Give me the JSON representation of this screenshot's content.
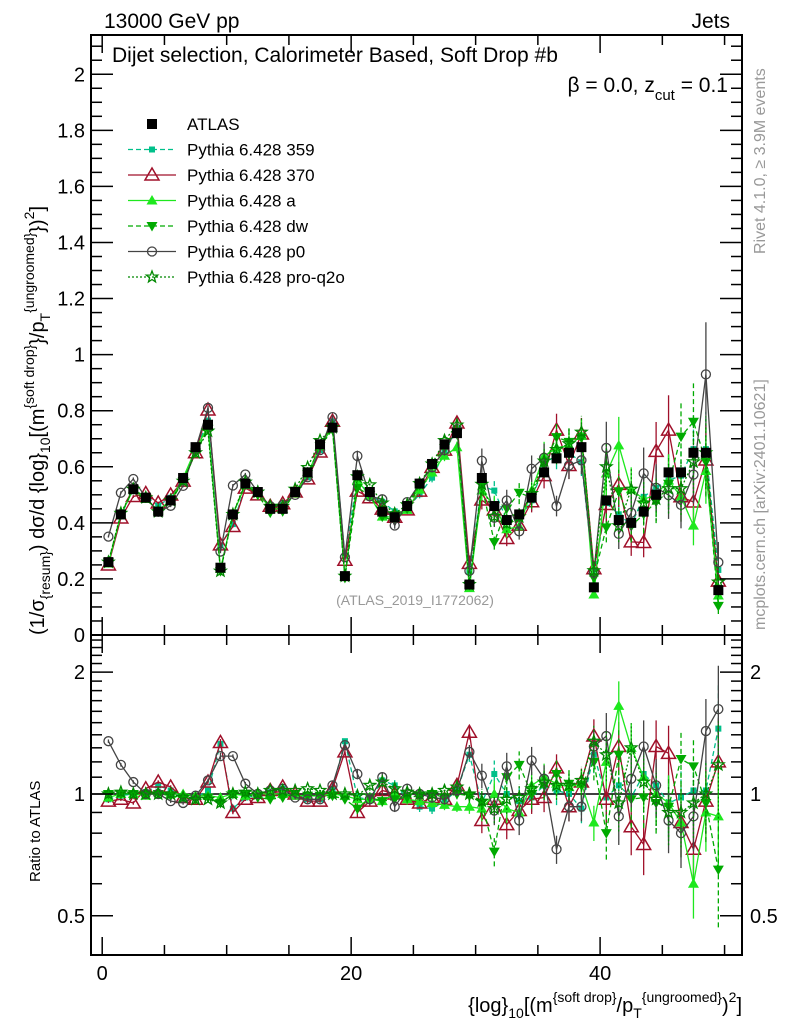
{
  "header": {
    "beam": "13000 GeV pp",
    "process": "Jets",
    "title_main": "Dijet selection, Calorimeter Based, Soft Drop #b",
    "title_beta": "β = 0.0, z",
    "title_sub": "cut",
    "title_end": " = 0.1",
    "rivet": "Rivet 4.1.0, ≥ 3.9M events",
    "mcplots": "mcplots.cern.ch [arXiv:2401.10621]",
    "analysis": "(ATLAS_2019_I1772062)"
  },
  "chart_data": {
    "type": "line",
    "title": "Dijet selection, Calorimeter Based, Soft Drop #b = 0.0, z_cut = 0.1",
    "xlabel": {
      "a": "{log}",
      "b": "10",
      "c": "[(m",
      "d": "{soft drop}",
      "e": "/p",
      "f": "T",
      "g": "{ungroomed}",
      "h": ")",
      "i": "2",
      "j": "]"
    },
    "ylabel": {
      "a": "(1/σ",
      "b": "{resum}",
      "c": ") dσ/d {log}",
      "d": "10",
      "e": "[(m",
      "f": "{soft drop}",
      "g": "}/p",
      "h": "T",
      "i": "{ungroomed}",
      "j": "})",
      "k": "2",
      "l": "]"
    },
    "ratio_ylabel": "Ratio to ATLAS",
    "xlim": [
      -0.9,
      51.4
    ],
    "ylim": [
      0,
      2.14
    ],
    "ratio_ylim": [
      0.4,
      2.47
    ],
    "ratio_scale": "log",
    "x_ticks": [
      {
        "v": 0,
        "label": "0"
      },
      {
        "v": 20,
        "label": "20"
      },
      {
        "v": 40,
        "label": "40"
      }
    ],
    "y_ticks": [
      {
        "v": 0,
        "label": "0"
      },
      {
        "v": 0.2,
        "label": "0.2"
      },
      {
        "v": 0.4,
        "label": "0.4"
      },
      {
        "v": 0.6,
        "label": "0.6"
      },
      {
        "v": 0.8,
        "label": "0.8"
      },
      {
        "v": 1,
        "label": "1"
      },
      {
        "v": 1.2,
        "label": "1.2"
      },
      {
        "v": 1.4,
        "label": "1.4"
      },
      {
        "v": 1.6,
        "label": "1.6"
      },
      {
        "v": 1.8,
        "label": "1.8"
      },
      {
        "v": 2,
        "label": "2"
      }
    ],
    "ratio_ticks": [
      {
        "v": 0.5,
        "label": "0.5"
      },
      {
        "v": 1,
        "label": "1"
      },
      {
        "v": 2,
        "label": "2"
      }
    ],
    "legend_position": "top-left",
    "x": [
      0.5,
      1.5,
      2.5,
      3.5,
      4.5,
      5.5,
      6.5,
      7.5,
      8.5,
      9.5,
      10.5,
      11.5,
      12.5,
      13.5,
      14.5,
      15.5,
      16.5,
      17.5,
      18.5,
      19.5,
      20.5,
      21.5,
      22.5,
      23.5,
      24.5,
      25.5,
      26.5,
      27.5,
      28.5,
      29.5,
      30.5,
      31.5,
      32.5,
      33.5,
      34.5,
      35.5,
      36.5,
      37.5,
      38.5,
      39.5,
      40.5,
      41.5,
      42.5,
      43.5,
      44.5,
      45.5,
      46.5,
      47.5,
      48.5,
      49.5
    ],
    "data": {
      "name": "ATLAS",
      "color": "#000000",
      "values": [
        0.26,
        0.43,
        0.52,
        0.49,
        0.44,
        0.48,
        0.56,
        0.67,
        0.75,
        0.24,
        0.43,
        0.54,
        0.51,
        0.45,
        0.45,
        0.51,
        0.58,
        0.68,
        0.74,
        0.21,
        0.57,
        0.51,
        0.44,
        0.42,
        0.46,
        0.54,
        0.61,
        0.68,
        0.72,
        0.18,
        0.56,
        0.46,
        0.41,
        0.43,
        0.49,
        0.58,
        0.63,
        0.65,
        0.67,
        0.17,
        0.48,
        0.41,
        0.4,
        0.44,
        0.5,
        0.58,
        0.58,
        0.65,
        0.65,
        0.16
      ]
    },
    "mc_rel_err": [
      0.01,
      0.01,
      0.01,
      0.01,
      0.01,
      0.01,
      0.01,
      0.01,
      0.01,
      0.02,
      0.01,
      0.01,
      0.01,
      0.01,
      0.01,
      0.01,
      0.01,
      0.01,
      0.01,
      0.02,
      0.03,
      0.03,
      0.03,
      0.03,
      0.03,
      0.03,
      0.03,
      0.03,
      0.03,
      0.04,
      0.07,
      0.08,
      0.08,
      0.08,
      0.08,
      0.08,
      0.08,
      0.08,
      0.08,
      0.1,
      0.14,
      0.15,
      0.15,
      0.16,
      0.16,
      0.17,
      0.18,
      0.18,
      0.2,
      0.28
    ],
    "series": [
      {
        "name": "Pythia 6.428 359",
        "color": "#00c08a",
        "line": "dashed",
        "marker": "square-small",
        "ratio": [
          0.97,
          0.99,
          1.0,
          1.01,
          1.05,
          1.02,
          0.98,
          0.98,
          1.02,
          1.33,
          0.92,
          0.98,
          0.99,
          1.01,
          1.03,
          1.0,
          0.97,
          0.97,
          1.03,
          1.35,
          0.98,
          0.97,
          1.08,
          1.05,
          0.98,
          0.93,
          0.92,
          0.96,
          1.02,
          1.25,
          0.95,
          1.12,
          1.0,
          0.96,
          0.98,
          1.05,
          1.02,
          1.0,
          0.92,
          1.25,
          0.98,
          1.05,
          0.98,
          1.12,
          1.05,
          0.95,
          0.98,
          1.02,
          1.02,
          1.45
        ]
      },
      {
        "name": "Pythia 6.428 370",
        "color": "#a0102a",
        "line": "solid",
        "marker": "triangle-open",
        "ratio": [
          0.96,
          0.97,
          0.95,
          1.03,
          1.07,
          1.04,
          0.98,
          0.97,
          1.07,
          1.34,
          0.9,
          0.97,
          0.98,
          1.02,
          1.04,
          1.0,
          0.96,
          0.96,
          1.03,
          1.27,
          0.9,
          0.96,
          1.02,
          1.0,
          0.97,
          0.95,
          0.98,
          0.97,
          1.05,
          1.42,
          0.86,
          0.97,
          0.84,
          0.91,
          0.97,
          0.98,
          1.16,
          0.93,
          1.07,
          1.39,
          0.97,
          1.31,
          0.83,
          0.75,
          1.31,
          1.26,
          0.85,
          0.73,
          0.96,
          1.2
        ]
      },
      {
        "name": "Pythia 6.428 a",
        "color": "#1ee81e",
        "line": "solid",
        "marker": "triangle-up",
        "ratio": [
          0.98,
          1.0,
          1.0,
          0.99,
          1.01,
          1.0,
          1.0,
          0.99,
          0.99,
          0.98,
          1.0,
          0.99,
          1.0,
          1.0,
          1.0,
          0.99,
          0.99,
          0.99,
          1.0,
          0.99,
          0.97,
          0.97,
          0.96,
          1.0,
          0.97,
          0.96,
          0.95,
          0.94,
          0.93,
          0.93,
          0.92,
          1.0,
          0.92,
          0.9,
          1.05,
          1.1,
          1.06,
          1.04,
          1.06,
          0.85,
          1.2,
          1.65,
          1.3,
          1.1,
          1.0,
          0.95,
          0.85,
          0.6,
          0.9,
          0.88
        ]
      },
      {
        "name": "Pythia 6.428 dw",
        "color": "#00aa00",
        "line": "dashed",
        "marker": "triangle-down",
        "ratio": [
          1.0,
          1.0,
          1.0,
          1.0,
          1.0,
          0.99,
          0.98,
          0.97,
          0.98,
          0.95,
          1.0,
          1.0,
          0.98,
          0.97,
          0.98,
          1.0,
          0.99,
          0.99,
          0.99,
          0.97,
          0.92,
          0.98,
          0.96,
          0.97,
          0.98,
          0.99,
          1.0,
          0.98,
          1.0,
          0.99,
          0.95,
          0.72,
          1.1,
          1.18,
          1.0,
          1.05,
          1.12,
          1.06,
          1.05,
          1.2,
          0.8,
          1.25,
          0.97,
          0.98,
          0.95,
          0.93,
          1.22,
          1.17,
          0.95,
          0.65
        ]
      },
      {
        "name": "Pythia 6.428 p0",
        "color": "#444444",
        "line": "solid",
        "marker": "circle-open",
        "ratio": [
          1.35,
          1.18,
          1.07,
          1.0,
          1.0,
          0.96,
          0.95,
          0.99,
          1.08,
          1.24,
          1.24,
          1.06,
          1.0,
          1.02,
          1.03,
          0.98,
          0.97,
          0.97,
          1.05,
          1.32,
          1.12,
          0.97,
          1.1,
          0.93,
          1.03,
          1.0,
          0.98,
          0.97,
          1.02,
          1.27,
          1.11,
          0.91,
          1.17,
          0.86,
          1.21,
          1.09,
          0.73,
          0.93,
          0.93,
          1.31,
          1.39,
          0.88,
          1.09,
          1.31,
          1.05,
          0.86,
          0.8,
          0.88,
          1.43,
          1.62
        ]
      },
      {
        "name": "Pythia 6.428 pro-q2o",
        "color": "#008800",
        "line": "dotted",
        "marker": "star-open",
        "ratio": [
          1.0,
          1.01,
          1.0,
          1.0,
          1.0,
          1.0,
          0.98,
          0.97,
          0.97,
          0.95,
          1.0,
          1.01,
          1.0,
          1.02,
          1.02,
          1.02,
          1.03,
          1.02,
          1.0,
          1.0,
          0.99,
          1.05,
          1.07,
          1.03,
          1.01,
          1.0,
          1.0,
          1.02,
          1.04,
          1.0,
          0.96,
          0.92,
          0.97,
          0.98,
          1.03,
          1.07,
          1.05,
          1.05,
          1.08,
          1.35,
          1.25,
          0.95,
          1.3,
          1.07,
          0.97,
          0.9,
          0.9,
          0.95,
          1.0,
          1.18
        ]
      }
    ]
  }
}
